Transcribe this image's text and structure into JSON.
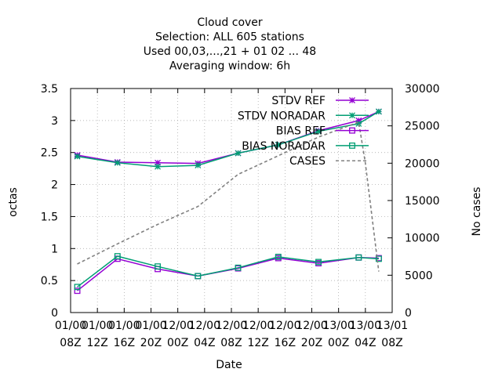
{
  "chart_data": {
    "type": "line",
    "title_lines": [
      "Cloud cover",
      "Selection: ALL    605 stations",
      "Used  00,03,...,21  + 01 02 ... 48",
      "Averaging window:  6h"
    ],
    "xlabel": "Date",
    "ylabel": "octas",
    "y2label": "No cases",
    "ylim": [
      0,
      3.5
    ],
    "y2lim": [
      0,
      30000
    ],
    "yticks": [
      "0",
      "0.5",
      "1",
      "1.5",
      "2",
      "2.5",
      "3",
      "3.5"
    ],
    "y2ticks": [
      "0",
      "5000",
      "10000",
      "15000",
      "20000",
      "25000",
      "30000"
    ],
    "xlim_hours": [
      0,
      48
    ],
    "xticks": [
      {
        "l1": "01/00",
        "l2": "08Z"
      },
      {
        "l1": "01/00",
        "l2": "12Z"
      },
      {
        "l1": "01/00",
        "l2": "16Z"
      },
      {
        "l1": "01/00",
        "l2": "20Z"
      },
      {
        "l1": "12/00",
        "l2": "00Z"
      },
      {
        "l1": "12/00",
        "l2": "04Z"
      },
      {
        "l1": "12/00",
        "l2": "08Z"
      },
      {
        "l1": "12/00",
        "l2": "12Z"
      },
      {
        "l1": "12/00",
        "l2": "16Z"
      },
      {
        "l1": "12/00",
        "l2": "20Z"
      },
      {
        "l1": "13/00",
        "l2": "00Z"
      },
      {
        "l1": "13/00",
        "l2": "04Z"
      },
      {
        "l1": "13/01",
        "l2": "08Z"
      }
    ],
    "legend_position": "top-right",
    "x_hours": [
      1,
      7,
      13,
      19,
      25,
      31,
      37,
      43,
      46
    ],
    "series": [
      {
        "name": "STDV REF",
        "axis": "y",
        "color": "#9400d3",
        "marker": "star",
        "values": [
          2.46,
          2.35,
          2.34,
          2.33,
          2.49,
          2.62,
          2.84,
          3.0,
          3.14
        ]
      },
      {
        "name": "STDV NORADAR",
        "axis": "y",
        "color": "#009e73",
        "marker": "star",
        "values": [
          2.44,
          2.34,
          2.28,
          2.3,
          2.49,
          2.62,
          2.83,
          2.95,
          3.14
        ]
      },
      {
        "name": "BIAS REF",
        "axis": "y",
        "color": "#9400d3",
        "marker": "square",
        "values": [
          0.34,
          0.84,
          0.68,
          0.57,
          0.69,
          0.85,
          0.77,
          0.86,
          0.85
        ]
      },
      {
        "name": "BIAS NORADAR",
        "axis": "y",
        "color": "#009e73",
        "marker": "square",
        "values": [
          0.4,
          0.88,
          0.72,
          0.57,
          0.7,
          0.87,
          0.79,
          0.86,
          0.84
        ]
      },
      {
        "name": "CASES",
        "axis": "y2",
        "color": "#808080",
        "marker": "none",
        "dashed": true,
        "x_hours": [
          1,
          7,
          13,
          19,
          25,
          31,
          37,
          43,
          44,
          46
        ],
        "values": [
          6500,
          9200,
          11800,
          14200,
          18500,
          21000,
          23500,
          25500,
          20000,
          5500
        ]
      }
    ]
  }
}
